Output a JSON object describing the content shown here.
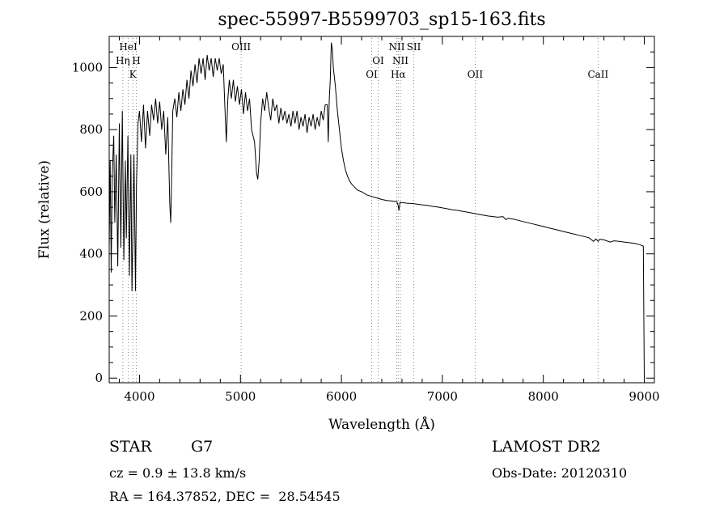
{
  "chart_data": {
    "type": "line",
    "title": "spec-55997-B5599703_sp15-163.fits",
    "xlabel": "Wavelength (Å)",
    "ylabel": "Flux (relative)",
    "xlim": [
      3700,
      9100
    ],
    "ylim": [
      -15,
      1100
    ],
    "xticks": [
      4000,
      5000,
      6000,
      7000,
      8000,
      9000
    ],
    "yticks": [
      0,
      200,
      400,
      600,
      800,
      1000
    ],
    "grid": false,
    "series": [
      {
        "points": [
          [
            3700,
            420
          ],
          [
            3710,
            700
          ],
          [
            3720,
            340
          ],
          [
            3730,
            650
          ],
          [
            3745,
            780
          ],
          [
            3755,
            500
          ],
          [
            3770,
            720
          ],
          [
            3785,
            360
          ],
          [
            3800,
            820
          ],
          [
            3815,
            420
          ],
          [
            3830,
            860
          ],
          [
            3845,
            380
          ],
          [
            3860,
            700
          ],
          [
            3870,
            450
          ],
          [
            3885,
            780
          ],
          [
            3900,
            330
          ],
          [
            3915,
            720
          ],
          [
            3925,
            280
          ],
          [
            3935,
            460
          ],
          [
            3945,
            720
          ],
          [
            3960,
            280
          ],
          [
            3970,
            620
          ],
          [
            3985,
            820
          ],
          [
            4000,
            860
          ],
          [
            4020,
            760
          ],
          [
            4040,
            880
          ],
          [
            4060,
            740
          ],
          [
            4080,
            860
          ],
          [
            4101,
            780
          ],
          [
            4120,
            880
          ],
          [
            4140,
            830
          ],
          [
            4160,
            900
          ],
          [
            4180,
            820
          ],
          [
            4200,
            890
          ],
          [
            4220,
            800
          ],
          [
            4240,
            860
          ],
          [
            4260,
            720
          ],
          [
            4280,
            840
          ],
          [
            4300,
            560
          ],
          [
            4310,
            500
          ],
          [
            4320,
            680
          ],
          [
            4330,
            860
          ],
          [
            4350,
            900
          ],
          [
            4370,
            840
          ],
          [
            4390,
            920
          ],
          [
            4410,
            860
          ],
          [
            4430,
            930
          ],
          [
            4450,
            880
          ],
          [
            4470,
            960
          ],
          [
            4490,
            900
          ],
          [
            4510,
            990
          ],
          [
            4530,
            940
          ],
          [
            4550,
            1010
          ],
          [
            4570,
            950
          ],
          [
            4590,
            1030
          ],
          [
            4610,
            980
          ],
          [
            4630,
            1030
          ],
          [
            4650,
            960
          ],
          [
            4670,
            1040
          ],
          [
            4690,
            990
          ],
          [
            4710,
            1030
          ],
          [
            4730,
            970
          ],
          [
            4750,
            1030
          ],
          [
            4770,
            990
          ],
          [
            4790,
            1030
          ],
          [
            4810,
            980
          ],
          [
            4830,
            1010
          ],
          [
            4845,
            880
          ],
          [
            4860,
            760
          ],
          [
            4875,
            900
          ],
          [
            4890,
            960
          ],
          [
            4910,
            900
          ],
          [
            4930,
            960
          ],
          [
            4950,
            890
          ],
          [
            4970,
            940
          ],
          [
            4990,
            880
          ],
          [
            5010,
            930
          ],
          [
            5030,
            850
          ],
          [
            5050,
            920
          ],
          [
            5070,
            860
          ],
          [
            5090,
            900
          ],
          [
            5110,
            800
          ],
          [
            5140,
            760
          ],
          [
            5160,
            660
          ],
          [
            5172,
            640
          ],
          [
            5185,
            700
          ],
          [
            5200,
            820
          ],
          [
            5220,
            900
          ],
          [
            5240,
            860
          ],
          [
            5260,
            920
          ],
          [
            5280,
            870
          ],
          [
            5300,
            830
          ],
          [
            5320,
            900
          ],
          [
            5340,
            860
          ],
          [
            5360,
            880
          ],
          [
            5380,
            820
          ],
          [
            5400,
            870
          ],
          [
            5420,
            830
          ],
          [
            5440,
            860
          ],
          [
            5460,
            820
          ],
          [
            5480,
            850
          ],
          [
            5500,
            810
          ],
          [
            5520,
            860
          ],
          [
            5540,
            820
          ],
          [
            5560,
            860
          ],
          [
            5580,
            800
          ],
          [
            5600,
            840
          ],
          [
            5620,
            810
          ],
          [
            5640,
            850
          ],
          [
            5660,
            790
          ],
          [
            5680,
            840
          ],
          [
            5700,
            810
          ],
          [
            5720,
            850
          ],
          [
            5740,
            800
          ],
          [
            5760,
            840
          ],
          [
            5780,
            810
          ],
          [
            5800,
            860
          ],
          [
            5820,
            830
          ],
          [
            5840,
            880
          ],
          [
            5860,
            880
          ],
          [
            5870,
            760
          ],
          [
            5880,
            900
          ],
          [
            5890,
            960
          ],
          [
            5900,
            1080
          ],
          [
            5910,
            1060
          ],
          [
            5920,
            1000
          ],
          [
            5940,
            940
          ],
          [
            5960,
            860
          ],
          [
            5980,
            800
          ],
          [
            6000,
            740
          ],
          [
            6020,
            700
          ],
          [
            6040,
            670
          ],
          [
            6060,
            650
          ],
          [
            6080,
            635
          ],
          [
            6100,
            625
          ],
          [
            6130,
            615
          ],
          [
            6160,
            605
          ],
          [
            6200,
            600
          ],
          [
            6250,
            590
          ],
          [
            6300,
            585
          ],
          [
            6350,
            580
          ],
          [
            6400,
            575
          ],
          [
            6450,
            572
          ],
          [
            6500,
            570
          ],
          [
            6550,
            568
          ],
          [
            6563,
            555
          ],
          [
            6570,
            540
          ],
          [
            6580,
            566
          ],
          [
            6600,
            565
          ],
          [
            6650,
            563
          ],
          [
            6700,
            562
          ],
          [
            6750,
            560
          ],
          [
            6800,
            558
          ],
          [
            6850,
            556
          ],
          [
            6900,
            553
          ],
          [
            6950,
            551
          ],
          [
            7000,
            548
          ],
          [
            7050,
            545
          ],
          [
            7100,
            542
          ],
          [
            7150,
            540
          ],
          [
            7200,
            537
          ],
          [
            7250,
            534
          ],
          [
            7300,
            531
          ],
          [
            7350,
            528
          ],
          [
            7400,
            525
          ],
          [
            7450,
            522
          ],
          [
            7500,
            520
          ],
          [
            7550,
            518
          ],
          [
            7600,
            520
          ],
          [
            7630,
            510
          ],
          [
            7650,
            515
          ],
          [
            7700,
            512
          ],
          [
            7750,
            508
          ],
          [
            7800,
            504
          ],
          [
            7850,
            500
          ],
          [
            7900,
            496
          ],
          [
            7950,
            492
          ],
          [
            8000,
            488
          ],
          [
            8050,
            484
          ],
          [
            8100,
            480
          ],
          [
            8150,
            476
          ],
          [
            8200,
            472
          ],
          [
            8250,
            468
          ],
          [
            8300,
            464
          ],
          [
            8350,
            460
          ],
          [
            8400,
            456
          ],
          [
            8450,
            452
          ],
          [
            8498,
            440
          ],
          [
            8520,
            448
          ],
          [
            8542,
            440
          ],
          [
            8560,
            447
          ],
          [
            8600,
            445
          ],
          [
            8662,
            438
          ],
          [
            8700,
            442
          ],
          [
            8750,
            440
          ],
          [
            8800,
            438
          ],
          [
            8850,
            436
          ],
          [
            8900,
            434
          ],
          [
            8950,
            430
          ],
          [
            8990,
            425
          ],
          [
            9000,
            0
          ]
        ]
      }
    ],
    "line_annotations": [
      {
        "label": "HeI",
        "x": 3889,
        "row": 0
      },
      {
        "label": "Hη",
        "x": 3835,
        "row": 1
      },
      {
        "label": "H",
        "x": 3968,
        "row": 1
      },
      {
        "label": "K",
        "x": 3934,
        "row": 2
      },
      {
        "label": "OIII",
        "x": 5007,
        "row": 0
      },
      {
        "label": "NII",
        "x": 6548,
        "row": 0
      },
      {
        "label": "SII",
        "x": 6717,
        "row": 0
      },
      {
        "label": "OI",
        "x": 6364,
        "row": 1
      },
      {
        "label": "NII",
        "x": 6584,
        "row": 1
      },
      {
        "label": "OI",
        "x": 6300,
        "row": 2
      },
      {
        "label": "Hα",
        "x": 6563,
        "row": 2
      },
      {
        "label": "OII",
        "x": 7325,
        "row": 2
      },
      {
        "label": "CaII",
        "x": 8542,
        "row": 2
      }
    ],
    "marker_lines": [
      3835,
      3889,
      3934,
      3968,
      5007,
      6300,
      6364,
      6548,
      6563,
      6584,
      6717,
      7325,
      8542
    ]
  },
  "info": {
    "class": "STAR",
    "subclass": "G7",
    "survey": "LAMOST DR2",
    "cz": "cz = 0.9 ± 13.8 km/s",
    "obs_date": "Obs-Date: 20120310",
    "radec": "RA = 164.37852, DEC =  28.54545"
  }
}
